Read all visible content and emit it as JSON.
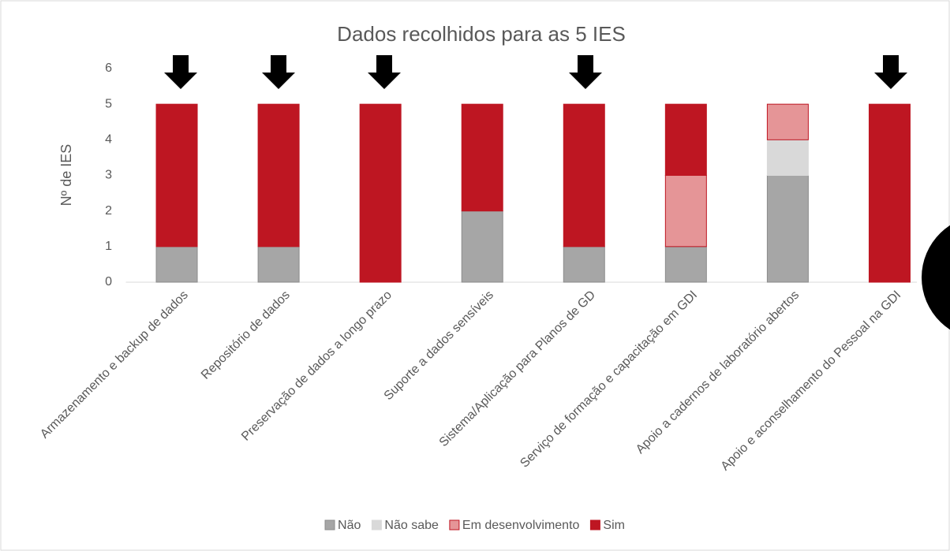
{
  "chart_data": {
    "type": "stacked_bar",
    "title": "Dados recolhidos para as 5 IES",
    "y_label": "Nº de IES",
    "categories": [
      "Armazenamento e backup de dados",
      "Repositório de dados",
      "Preservação de dados a longo prazo",
      "Suporte a dados sensíveis",
      "Sistema/Aplicação para Planos de GD",
      "Serviço de formação e capacitação em GDI",
      "Apoio a cadernos de laboratório abertos",
      "Apoio e aconselhamento do Pessoal na GDI"
    ],
    "series": [
      {
        "name": "Não",
        "color": "#a6a6a6",
        "values": [
          1,
          1,
          0,
          2,
          1,
          1,
          3,
          0
        ]
      },
      {
        "name": "Não sabe",
        "color": "#d9d9d9",
        "values": [
          0,
          0,
          0,
          0,
          0,
          0,
          1,
          0
        ]
      },
      {
        "name": "Em desenvolvimento",
        "color": "#e59597",
        "values": [
          0,
          0,
          0,
          0,
          0,
          2,
          1,
          0
        ]
      },
      {
        "name": "Sim",
        "color": "#be1622",
        "values": [
          4,
          4,
          5,
          3,
          4,
          2,
          0,
          5
        ]
      }
    ],
    "ylim": [
      0,
      6
    ],
    "yticks": [
      0,
      1,
      2,
      3,
      4,
      5,
      6
    ],
    "legend": "bottom"
  }
}
